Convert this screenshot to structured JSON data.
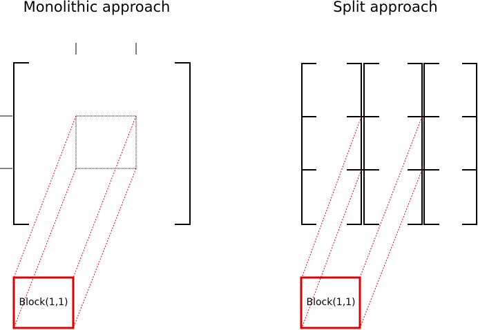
{
  "titles": {
    "left": "Monolithic approach",
    "right": "Split approach"
  },
  "blocks": {
    "left": "Block(1,1)",
    "right": "Block(1,1)"
  },
  "colors": {
    "line": "#000000",
    "highlight": "#e00000",
    "background": "#ffffff"
  }
}
